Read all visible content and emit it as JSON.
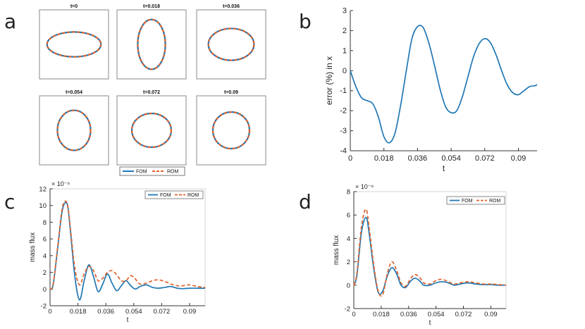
{
  "panel_labels": {
    "a": "a",
    "b": "b",
    "c": "c",
    "d": "d"
  },
  "colors": {
    "fom": "#1f77b4",
    "rom": "#e0622a",
    "axis": "#333333",
    "frame": "#888888"
  },
  "chart_data": [
    {
      "id": "a",
      "type": "shape-snapshots",
      "description_title": "Droplet shape snapshots",
      "snapshots": [
        {
          "title": "t=0",
          "rx": 0.78,
          "ry": 0.36
        },
        {
          "title": "t=0.018",
          "rx": 0.4,
          "ry": 0.72
        },
        {
          "title": "t=0.036",
          "rx": 0.66,
          "ry": 0.46
        },
        {
          "title": "t=0.054",
          "rx": 0.48,
          "ry": 0.58
        },
        {
          "title": "t=0.072",
          "rx": 0.57,
          "ry": 0.49
        },
        {
          "title": "t=0.09",
          "rx": 0.53,
          "ry": 0.53
        }
      ],
      "legend": [
        "FOM",
        "ROM"
      ]
    },
    {
      "id": "b",
      "type": "line",
      "xlabel": "t",
      "ylabel": "error (%) in x",
      "xlim": [
        0,
        0.1
      ],
      "ylim": [
        -4,
        3
      ],
      "xticks": [
        0,
        0.018,
        0.036,
        0.054,
        0.072,
        0.09
      ],
      "xtick_labels": [
        "0",
        "0.018",
        "0.036",
        "0.054",
        "0.072",
        "0.09"
      ],
      "yticks": [
        -4,
        -3,
        -2,
        -1,
        0,
        1,
        2,
        3
      ],
      "ytick_labels": [
        "-4",
        "-3",
        "-2",
        "-1",
        "0",
        "1",
        "2",
        "3"
      ],
      "series": [
        {
          "name": "error",
          "color": "#1f77b4",
          "x": [
            0,
            0.003,
            0.006,
            0.009,
            0.012,
            0.015,
            0.018,
            0.021,
            0.024,
            0.027,
            0.03,
            0.033,
            0.036,
            0.039,
            0.042,
            0.045,
            0.048,
            0.051,
            0.054,
            0.057,
            0.06,
            0.063,
            0.066,
            0.069,
            0.072,
            0.075,
            0.078,
            0.081,
            0.084,
            0.087,
            0.09,
            0.093,
            0.096,
            0.099,
            0.1
          ],
          "y": [
            0,
            -0.8,
            -1.35,
            -1.5,
            -1.65,
            -2.3,
            -3.3,
            -3.6,
            -3.1,
            -1.7,
            0.0,
            1.6,
            2.2,
            2.15,
            1.4,
            0.3,
            -0.9,
            -1.8,
            -2.1,
            -2.0,
            -1.3,
            -0.3,
            0.7,
            1.35,
            1.6,
            1.4,
            0.8,
            0.0,
            -0.7,
            -1.1,
            -1.2,
            -1.0,
            -0.8,
            -0.75,
            -0.7
          ]
        }
      ]
    },
    {
      "id": "c",
      "type": "line",
      "xlabel": "t",
      "ylabel": "mass flux",
      "exponent": "× 10⁻⁶",
      "xlim": [
        0,
        0.1
      ],
      "ylim": [
        -2,
        12
      ],
      "xticks": [
        0,
        0.018,
        0.036,
        0.054,
        0.072,
        0.09
      ],
      "xtick_labels": [
        "0",
        "0.018",
        "0.036",
        "0.054",
        "0.072",
        "0.09"
      ],
      "yticks": [
        -2,
        0,
        2,
        4,
        6,
        8,
        10,
        12
      ],
      "ytick_labels": [
        "-2",
        "0",
        "2",
        "4",
        "6",
        "8",
        "10",
        "12"
      ],
      "legend": [
        "FOM",
        "ROM"
      ],
      "series": [
        {
          "name": "FOM",
          "style": "solid",
          "color": "#1f77b4",
          "x": [
            0,
            0.002,
            0.005,
            0.008,
            0.011,
            0.013,
            0.016,
            0.019,
            0.022,
            0.025,
            0.028,
            0.031,
            0.034,
            0.037,
            0.04,
            0.043,
            0.046,
            0.049,
            0.052,
            0.055,
            0.058,
            0.062,
            0.066,
            0.07,
            0.074,
            0.078,
            0.082,
            0.086,
            0.09,
            0.095,
            0.1
          ],
          "y": [
            0,
            0.5,
            5.0,
            9.5,
            10.2,
            7.2,
            1.5,
            -1.3,
            1.0,
            2.9,
            1.5,
            -0.3,
            0.6,
            1.8,
            0.7,
            -0.2,
            0.4,
            1.0,
            0.4,
            0.0,
            0.3,
            0.5,
            0.2,
            0.1,
            0.2,
            0.3,
            0.1,
            0.05,
            0.1,
            0.1,
            0.1
          ]
        },
        {
          "name": "ROM",
          "style": "dashed",
          "color": "#e0622a",
          "x": [
            0,
            0.002,
            0.005,
            0.008,
            0.011,
            0.013,
            0.016,
            0.019,
            0.022,
            0.025,
            0.028,
            0.031,
            0.034,
            0.037,
            0.04,
            0.043,
            0.046,
            0.049,
            0.052,
            0.055,
            0.058,
            0.062,
            0.066,
            0.07,
            0.074,
            0.078,
            0.082,
            0.086,
            0.09,
            0.095,
            0.1
          ],
          "y": [
            0,
            0.6,
            5.2,
            9.8,
            10.3,
            7.5,
            2.5,
            0.5,
            1.8,
            2.7,
            2.2,
            1.0,
            1.3,
            2.0,
            2.2,
            1.7,
            1.0,
            1.0,
            1.6,
            1.2,
            0.6,
            0.7,
            1.0,
            1.1,
            0.9,
            0.6,
            0.4,
            0.4,
            0.5,
            0.3,
            0.2
          ]
        }
      ]
    },
    {
      "id": "d",
      "type": "line",
      "xlabel": "t",
      "ylabel": "mass flux",
      "exponent": "× 10⁻⁶",
      "xlim": [
        0,
        0.1
      ],
      "ylim": [
        -2,
        8
      ],
      "xticks": [
        0,
        0.018,
        0.036,
        0.054,
        0.072,
        0.09
      ],
      "xtick_labels": [
        "0",
        "0.018",
        "0.036",
        "0.054",
        "0.072",
        "0.09"
      ],
      "yticks": [
        -2,
        0,
        2,
        4,
        6,
        8
      ],
      "ytick_labels": [
        "-2",
        "0",
        "2",
        "4",
        "6",
        "8"
      ],
      "legend": [
        "FOM",
        "ROM"
      ],
      "series": [
        {
          "name": "FOM",
          "style": "solid",
          "color": "#1f77b4",
          "x": [
            0,
            0.002,
            0.005,
            0.008,
            0.01,
            0.013,
            0.016,
            0.019,
            0.022,
            0.025,
            0.028,
            0.031,
            0.034,
            0.037,
            0.04,
            0.043,
            0.046,
            0.05,
            0.054,
            0.058,
            0.062,
            0.066,
            0.07,
            0.075,
            0.08,
            0.085,
            0.09,
            0.095,
            0.1
          ],
          "y": [
            0,
            0.8,
            4.5,
            5.8,
            4.5,
            1.5,
            -0.6,
            -0.5,
            0.8,
            1.5,
            1.0,
            0.0,
            -0.2,
            0.3,
            0.6,
            0.4,
            0.0,
            0.0,
            0.2,
            0.3,
            0.2,
            0.0,
            0.1,
            0.2,
            0.1,
            0.05,
            0.05,
            0.0,
            0.0
          ]
        },
        {
          "name": "ROM",
          "style": "dashed",
          "color": "#e0622a",
          "x": [
            0,
            0.002,
            0.005,
            0.008,
            0.01,
            0.013,
            0.016,
            0.019,
            0.022,
            0.025,
            0.028,
            0.031,
            0.034,
            0.037,
            0.04,
            0.043,
            0.046,
            0.05,
            0.054,
            0.058,
            0.062,
            0.066,
            0.07,
            0.075,
            0.08,
            0.085,
            0.09,
            0.095,
            0.1
          ],
          "y": [
            0,
            1.0,
            5.0,
            6.5,
            5.0,
            1.8,
            -0.5,
            -0.8,
            1.0,
            2.0,
            1.3,
            0.2,
            -0.1,
            0.5,
            0.9,
            0.7,
            0.2,
            0.1,
            0.4,
            0.5,
            0.3,
            0.1,
            0.2,
            0.3,
            0.2,
            0.1,
            0.1,
            0.05,
            0.0
          ]
        }
      ]
    }
  ]
}
